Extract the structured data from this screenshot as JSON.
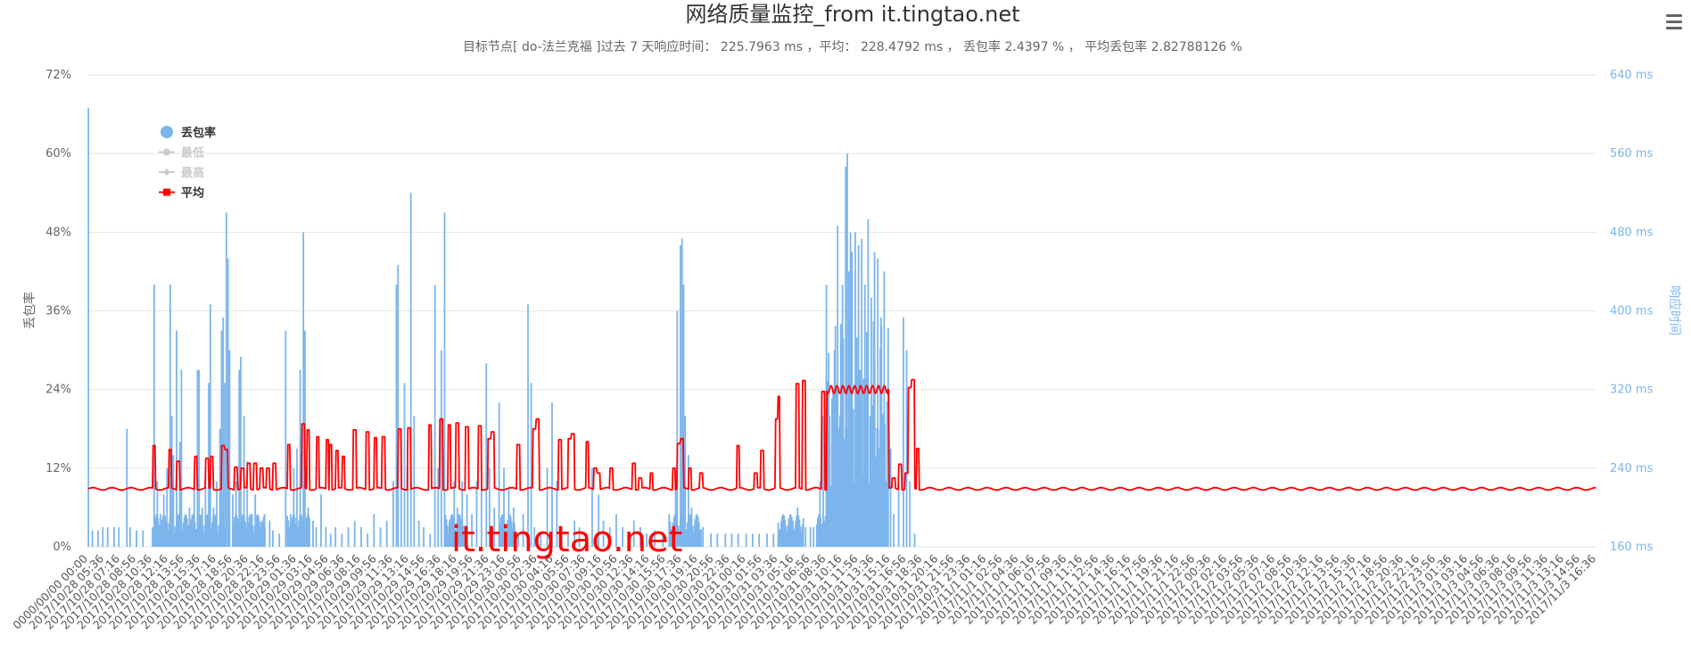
{
  "chart_data": {
    "type": "line",
    "title": "网络质量监控_from it.tingtao.net",
    "subtitle": "目标节点[ do-法兰克福 ]过去 7 天响应时间： 225.7963 ms ，平均： 228.4792 ms ， 丢包率 2.4397 % ， 平均丢包率 2.82788126 %",
    "watermark": "it.tingtao.net",
    "y_left": {
      "label": "丢包率",
      "ticks": [
        "0%",
        "12%",
        "24%",
        "36%",
        "48%",
        "60%",
        "72%"
      ],
      "range": [
        0,
        72
      ],
      "unit": "%"
    },
    "y_right": {
      "label": "响应时间",
      "ticks": [
        "160 ms",
        "240 ms",
        "320 ms",
        "400 ms",
        "480 ms",
        "560 ms",
        "640 ms"
      ],
      "range": [
        160,
        640
      ],
      "unit": "ms"
    },
    "grid": true,
    "legend_position": "top-left",
    "x_ticks": [
      "0000/00/00 00:00",
      "2017/10/28 05:36",
      "2017/10/28 07:16",
      "2017/10/28 08:56",
      "2017/10/28 10:36",
      "2017/10/28 12:16",
      "2017/10/28 13:56",
      "2017/10/28 15:36",
      "2017/10/28 17:16",
      "2017/10/28 18:56",
      "2017/10/28 20:36",
      "2017/10/28 22:16",
      "2017/10/28 23:56",
      "2017/10/29 01:36",
      "2017/10/29 03:16",
      "2017/10/29 04:56",
      "2017/10/29 06:36",
      "2017/10/29 08:16",
      "2017/10/29 09:56",
      "2017/10/29 11:36",
      "2017/10/29 13:16",
      "2017/10/29 14:56",
      "2017/10/29 16:36",
      "2017/10/29 18:16",
      "2017/10/29 19:56",
      "2017/10/29 21:36",
      "2017/10/29 23:16",
      "2017/10/30 00:56",
      "2017/10/30 02:36",
      "2017/10/30 04:16",
      "2017/10/30 05:56",
      "2017/10/30 07:36",
      "2017/10/30 09:16",
      "2017/10/30 10:56",
      "2017/10/30 12:36",
      "2017/10/30 14:16",
      "2017/10/30 15:56",
      "2017/10/30 17:36",
      "2017/10/30 19:16",
      "2017/10/30 20:56",
      "2017/10/30 22:36",
      "2017/10/31 00:16",
      "2017/10/31 01:56",
      "2017/10/31 03:36",
      "2017/10/31 05:16",
      "2017/10/31 06:56",
      "2017/10/31 08:36",
      "2017/10/31 10:16",
      "2017/10/31 11:56",
      "2017/10/31 13:36",
      "2017/10/31 15:16",
      "2017/10/31 16:56",
      "2017/10/31 18:36",
      "2017/10/31 20:16",
      "2017/10/31 21:56",
      "2017/10/31 23:36",
      "2017/11/1 01:16",
      "2017/11/1 02:56",
      "2017/11/1 04:36",
      "2017/11/1 06:16",
      "2017/11/1 07:56",
      "2017/11/1 09:36",
      "2017/11/1 11:16",
      "2017/11/1 12:56",
      "2017/11/1 14:36",
      "2017/11/1 16:16",
      "2017/11/1 17:56",
      "2017/11/1 19:36",
      "2017/11/1 21:16",
      "2017/11/1 22:56",
      "2017/11/2 00:36",
      "2017/11/2 02:16",
      "2017/11/2 03:56",
      "2017/11/2 05:36",
      "2017/11/2 07:16",
      "2017/11/2 08:56",
      "2017/11/2 10:36",
      "2017/11/2 12:16",
      "2017/11/2 13:56",
      "2017/11/2 15:36",
      "2017/11/2 17:16",
      "2017/11/2 18:56",
      "2017/11/2 20:36",
      "2017/11/2 22:16",
      "2017/11/2 23:56",
      "2017/11/3 01:36",
      "2017/11/3 03:16",
      "2017/11/3 04:56",
      "2017/11/3 06:36",
      "2017/11/3 08:16",
      "2017/11/3 09:56",
      "2017/11/3 11:36",
      "2017/11/3 13:16",
      "2017/11/3 14:56",
      "2017/11/3 16:36"
    ],
    "series": [
      {
        "name": "丢包率",
        "type": "column",
        "axis": "left",
        "color": "#7cb5ec",
        "legend_active": true,
        "spikes": [
          [
            0.0,
            67
          ],
          [
            0.25,
            2.5
          ],
          [
            0.6,
            2.5
          ],
          [
            0.9,
            3
          ],
          [
            1.2,
            3
          ],
          [
            1.6,
            3
          ],
          [
            1.9,
            3
          ],
          [
            2.4,
            18
          ],
          [
            2.6,
            3
          ],
          [
            3.0,
            2.5
          ],
          [
            3.4,
            2.5
          ],
          [
            4.0,
            3
          ],
          [
            4.1,
            40
          ],
          [
            4.3,
            10
          ],
          [
            4.5,
            5
          ],
          [
            4.7,
            8
          ],
          [
            4.9,
            12
          ],
          [
            5.1,
            40
          ],
          [
            5.2,
            20
          ],
          [
            5.3,
            14
          ],
          [
            5.5,
            33
          ],
          [
            5.7,
            16
          ],
          [
            5.8,
            27
          ],
          [
            6.3,
            6
          ],
          [
            6.6,
            10
          ],
          [
            6.8,
            27
          ],
          [
            6.9,
            27
          ],
          [
            7.1,
            6
          ],
          [
            7.3,
            12
          ],
          [
            7.5,
            25
          ],
          [
            7.6,
            37
          ],
          [
            7.8,
            6
          ],
          [
            8.0,
            10
          ],
          [
            8.2,
            18
          ],
          [
            8.3,
            33
          ],
          [
            8.4,
            35
          ],
          [
            8.5,
            25
          ],
          [
            8.6,
            51
          ],
          [
            8.7,
            44
          ],
          [
            8.8,
            30
          ],
          [
            9.0,
            8
          ],
          [
            9.2,
            10
          ],
          [
            9.4,
            27
          ],
          [
            9.5,
            29
          ],
          [
            9.7,
            20
          ],
          [
            9.9,
            13
          ],
          [
            10.2,
            5
          ],
          [
            10.4,
            8
          ],
          [
            10.6,
            3
          ],
          [
            10.8,
            4
          ],
          [
            11.0,
            3
          ],
          [
            11.3,
            4
          ],
          [
            11.5,
            2.5
          ],
          [
            11.9,
            2
          ],
          [
            12.3,
            33
          ],
          [
            12.6,
            5
          ],
          [
            12.8,
            12
          ],
          [
            13.0,
            15
          ],
          [
            13.2,
            27
          ],
          [
            13.4,
            48
          ],
          [
            13.5,
            33
          ],
          [
            13.7,
            6
          ],
          [
            14.0,
            4
          ],
          [
            14.2,
            3
          ],
          [
            14.5,
            8
          ],
          [
            14.8,
            3
          ],
          [
            15.1,
            2
          ],
          [
            15.4,
            3
          ],
          [
            15.8,
            2
          ],
          [
            16.2,
            3
          ],
          [
            16.6,
            4
          ],
          [
            17.0,
            3
          ],
          [
            17.4,
            2
          ],
          [
            17.8,
            5
          ],
          [
            18.2,
            3
          ],
          [
            18.6,
            4
          ],
          [
            19.0,
            10
          ],
          [
            19.2,
            40
          ],
          [
            19.3,
            43
          ],
          [
            19.5,
            18
          ],
          [
            19.7,
            25
          ],
          [
            19.9,
            12
          ],
          [
            20.1,
            54
          ],
          [
            20.3,
            20
          ],
          [
            20.6,
            4
          ],
          [
            20.9,
            3
          ],
          [
            21.3,
            2
          ],
          [
            21.6,
            40
          ],
          [
            21.8,
            12
          ],
          [
            22.0,
            30
          ],
          [
            22.2,
            51
          ],
          [
            22.5,
            4
          ],
          [
            22.8,
            10
          ],
          [
            23.0,
            6
          ],
          [
            23.3,
            10
          ],
          [
            23.6,
            8
          ],
          [
            23.9,
            5
          ],
          [
            24.2,
            10
          ],
          [
            24.5,
            9
          ],
          [
            24.8,
            28
          ],
          [
            25.0,
            12
          ],
          [
            25.3,
            6
          ],
          [
            25.6,
            22
          ],
          [
            25.9,
            12
          ],
          [
            26.2,
            9
          ],
          [
            26.5,
            6
          ],
          [
            26.8,
            2
          ],
          [
            27.1,
            5
          ],
          [
            27.4,
            37
          ],
          [
            27.6,
            25
          ],
          [
            27.8,
            3
          ],
          [
            28.2,
            2
          ],
          [
            28.6,
            12
          ],
          [
            28.9,
            22
          ],
          [
            29.2,
            10
          ],
          [
            29.5,
            3
          ],
          [
            29.9,
            2
          ],
          [
            30.3,
            4
          ],
          [
            30.6,
            3
          ],
          [
            31.0,
            2
          ],
          [
            31.4,
            12
          ],
          [
            31.8,
            8
          ],
          [
            32.1,
            4
          ],
          [
            32.5,
            3
          ],
          [
            32.9,
            5
          ],
          [
            33.3,
            3
          ],
          [
            33.7,
            2
          ],
          [
            34.0,
            4
          ],
          [
            34.4,
            3
          ],
          [
            34.8,
            2
          ],
          [
            35.3,
            2.5
          ],
          [
            35.8,
            2
          ],
          [
            36.2,
            5
          ],
          [
            36.6,
            12
          ],
          [
            36.7,
            36
          ],
          [
            36.9,
            46
          ],
          [
            37.0,
            47
          ],
          [
            37.1,
            40
          ],
          [
            37.2,
            20
          ],
          [
            37.4,
            14
          ],
          [
            37.6,
            6
          ],
          [
            37.9,
            2
          ],
          [
            38.3,
            3
          ],
          [
            38.8,
            2
          ],
          [
            39.2,
            2
          ],
          [
            39.7,
            2
          ],
          [
            40.1,
            2
          ],
          [
            40.5,
            2
          ],
          [
            41.0,
            2
          ],
          [
            41.4,
            2
          ],
          [
            41.8,
            2
          ],
          [
            42.3,
            2
          ],
          [
            42.7,
            2
          ],
          [
            43.1,
            2
          ],
          [
            43.6,
            3
          ],
          [
            43.9,
            4
          ],
          [
            44.2,
            6
          ],
          [
            44.4,
            2
          ],
          [
            44.7,
            3
          ],
          [
            45.0,
            3
          ],
          [
            45.2,
            3
          ],
          [
            45.6,
            10
          ],
          [
            45.8,
            20
          ],
          [
            46.0,
            40
          ],
          [
            46.2,
            20
          ],
          [
            46.4,
            14
          ],
          [
            46.5,
            30
          ],
          [
            46.7,
            49
          ],
          [
            46.9,
            34
          ],
          [
            47.0,
            40
          ],
          [
            47.2,
            58
          ],
          [
            47.3,
            60
          ],
          [
            47.4,
            42
          ],
          [
            47.5,
            48
          ],
          [
            47.6,
            45
          ],
          [
            47.8,
            48
          ],
          [
            48.0,
            46
          ],
          [
            48.2,
            47
          ],
          [
            48.4,
            40
          ],
          [
            48.6,
            50
          ],
          [
            48.8,
            38
          ],
          [
            49.0,
            45
          ],
          [
            49.2,
            44
          ],
          [
            49.4,
            35
          ],
          [
            49.6,
            42
          ],
          [
            49.8,
            12
          ],
          [
            50.0,
            15
          ],
          [
            50.2,
            5
          ],
          [
            50.5,
            10
          ],
          [
            50.8,
            35
          ],
          [
            51.0,
            30
          ],
          [
            51.2,
            10
          ],
          [
            51.5,
            2
          ]
        ]
      },
      {
        "name": "最低",
        "type": "line",
        "axis": "right",
        "color": "#cccccc",
        "legend_active": false
      },
      {
        "name": "最高",
        "type": "line",
        "axis": "right",
        "color": "#cccccc",
        "legend_active": false
      },
      {
        "name": "平均",
        "type": "line",
        "axis": "right",
        "color": "#ff0000",
        "legend_active": true,
        "baseline_ms": 219,
        "segments": [
          [
            4.1,
            263
          ],
          [
            5.1,
            259
          ],
          [
            5.6,
            247
          ],
          [
            6.7,
            252
          ],
          [
            7.4,
            250
          ],
          [
            7.7,
            252
          ],
          [
            8.4,
            263
          ],
          [
            8.6,
            259
          ],
          [
            9.2,
            241
          ],
          [
            9.6,
            240
          ],
          [
            10.0,
            245
          ],
          [
            10.4,
            245
          ],
          [
            10.8,
            240
          ],
          [
            11.2,
            240
          ],
          [
            11.6,
            245
          ],
          [
            12.5,
            264
          ],
          [
            13.4,
            285
          ],
          [
            13.7,
            279
          ],
          [
            14.3,
            272
          ],
          [
            14.9,
            269
          ],
          [
            15.1,
            264
          ],
          [
            15.5,
            258
          ],
          [
            15.9,
            252
          ],
          [
            16.6,
            279
          ],
          [
            17.4,
            277
          ],
          [
            17.9,
            271
          ],
          [
            18.4,
            272
          ],
          [
            19.4,
            280
          ],
          [
            20.0,
            281
          ],
          [
            21.3,
            284
          ],
          [
            22.0,
            290
          ],
          [
            22.5,
            284
          ],
          [
            23.0,
            286
          ],
          [
            23.6,
            282
          ],
          [
            24.4,
            283
          ],
          [
            25.0,
            270
          ],
          [
            25.2,
            277
          ],
          [
            26.8,
            264
          ],
          [
            27.8,
            280
          ],
          [
            28.0,
            290
          ],
          [
            29.4,
            269
          ],
          [
            30.0,
            270
          ],
          [
            30.2,
            275
          ],
          [
            31.1,
            267
          ],
          [
            31.6,
            240
          ],
          [
            31.8,
            235
          ],
          [
            32.6,
            240
          ],
          [
            34.0,
            245
          ],
          [
            34.4,
            230
          ],
          [
            35.1,
            235
          ],
          [
            36.5,
            240
          ],
          [
            36.8,
            265
          ],
          [
            37.0,
            270
          ],
          [
            37.5,
            240
          ],
          [
            38.2,
            235
          ],
          [
            40.5,
            263
          ],
          [
            41.6,
            235
          ],
          [
            42.0,
            258
          ],
          [
            42.9,
            290
          ],
          [
            43.0,
            313
          ],
          [
            44.2,
            326
          ],
          [
            44.6,
            329
          ],
          [
            45.8,
            318
          ],
          [
            46.1,
            319
          ],
          [
            46.4,
            325
          ],
          [
            46.6,
            323
          ],
          [
            46.9,
            322
          ],
          [
            47.2,
            320
          ],
          [
            47.6,
            321
          ],
          [
            48.0,
            322
          ],
          [
            48.4,
            322
          ],
          [
            48.7,
            320
          ],
          [
            49.0,
            322
          ],
          [
            49.4,
            325
          ],
          [
            49.8,
            320
          ],
          [
            50.2,
            230
          ],
          [
            50.6,
            244
          ],
          [
            51.0,
            235
          ],
          [
            51.2,
            322
          ],
          [
            51.4,
            330
          ],
          [
            51.7,
            260
          ]
        ]
      }
    ]
  },
  "menu": {
    "icon": "hamburger-menu-icon"
  }
}
